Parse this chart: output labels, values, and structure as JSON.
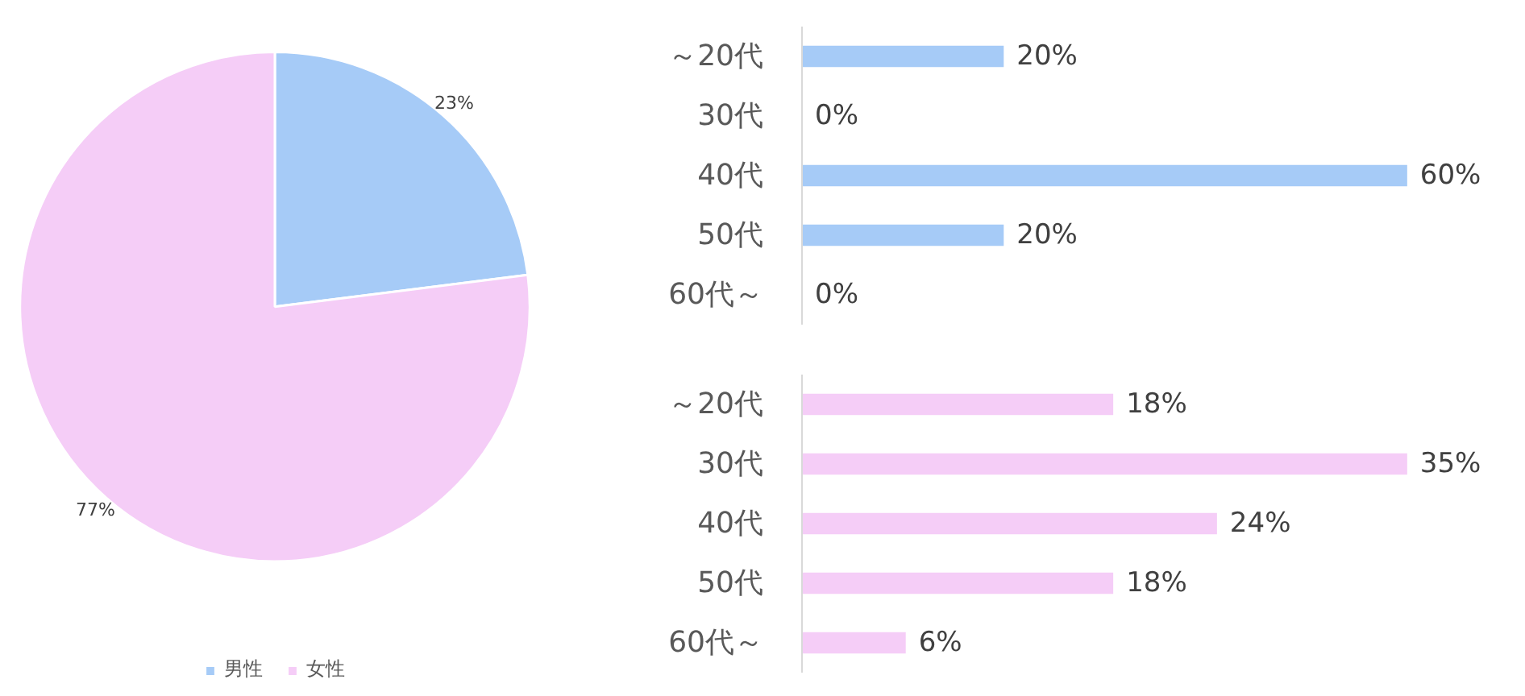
{
  "chart_data": [
    {
      "type": "pie",
      "categories": [
        "男性",
        "女性"
      ],
      "values": [
        23,
        77
      ],
      "colors": [
        "#a6cbf7",
        "#f5cdf7"
      ],
      "value_labels": [
        "23%",
        "77%"
      ],
      "legend": "bottom"
    },
    {
      "type": "bar",
      "orientation": "horizontal",
      "categories": [
        "～20代",
        "30代",
        "40代",
        "50代",
        "60代～"
      ],
      "values": [
        20,
        0,
        60,
        20,
        0
      ],
      "color": "#a6cbf7",
      "value_labels": [
        "20%",
        "0%",
        "60%",
        "20%",
        "0%"
      ]
    },
    {
      "type": "bar",
      "orientation": "horizontal",
      "categories": [
        "～20代",
        "30代",
        "40代",
        "50代",
        "60代～"
      ],
      "values": [
        18,
        35,
        24,
        18,
        6
      ],
      "color": "#f5cdf7",
      "value_labels": [
        "18%",
        "35%",
        "24%",
        "18%",
        "6%"
      ]
    }
  ]
}
